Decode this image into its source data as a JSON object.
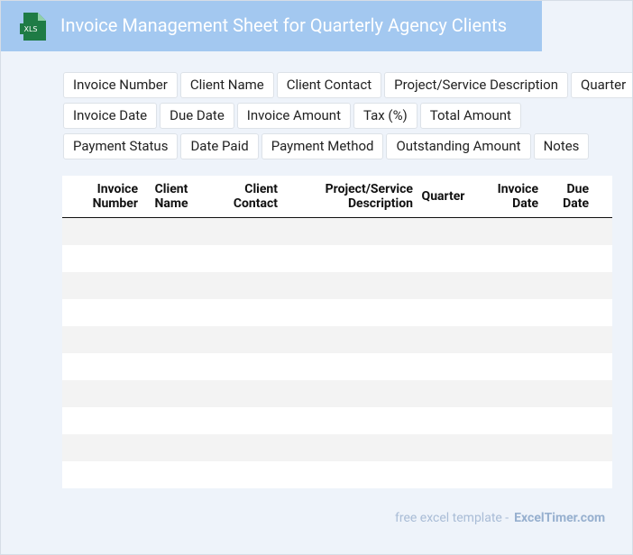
{
  "header": {
    "icon_label": "XLS",
    "title": "Invoice Management Sheet for Quarterly Agency Clients"
  },
  "tags": [
    [
      "Invoice Number",
      "Client Name",
      "Client Contact",
      "Project/Service Description",
      "Quarter"
    ],
    [
      "Invoice Date",
      "Due Date",
      "Invoice Amount",
      "Tax (%)",
      "Total Amount"
    ],
    [
      "Payment Status",
      "Date Paid",
      "Payment Method",
      "Outstanding Amount",
      "Notes"
    ]
  ],
  "table": {
    "columns": [
      "Invoice Number",
      "Client Name",
      "Client Contact",
      "Project/Service Description",
      "Quarter",
      "Invoice Date",
      "Due Date"
    ]
  },
  "footer": {
    "text": "free excel template -",
    "brand": "ExcelTimer.com"
  }
}
